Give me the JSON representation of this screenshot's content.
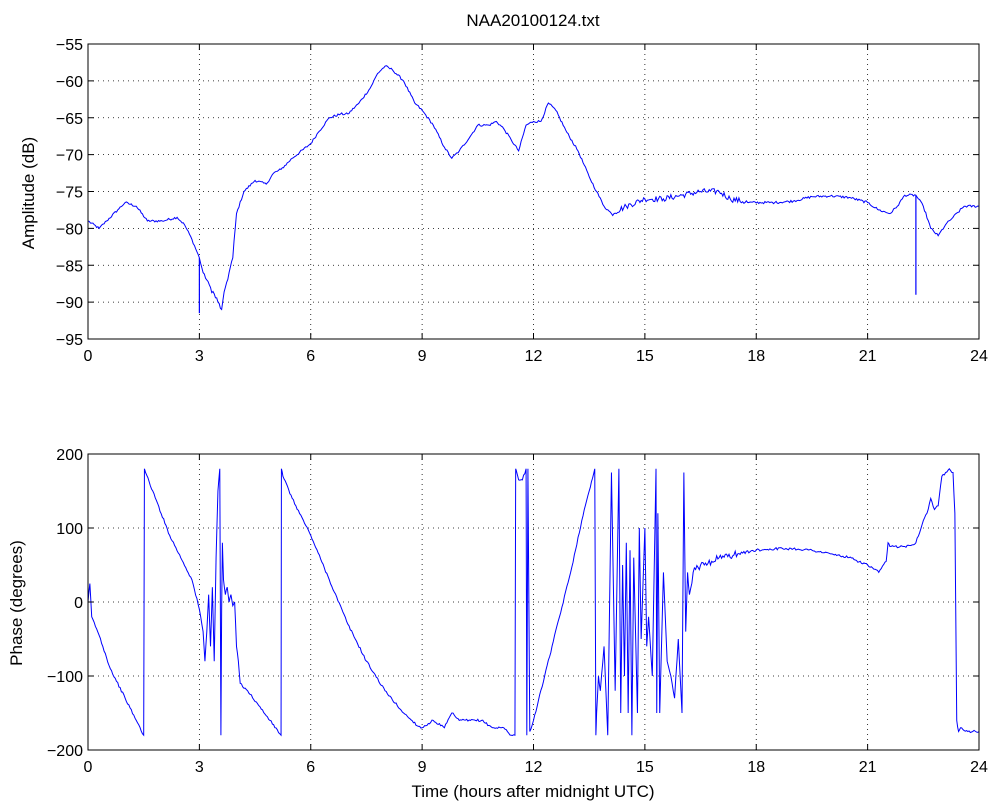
{
  "figure": {
    "title": "NAA20100124.txt",
    "line_color": "#0000ff"
  },
  "chart_data": [
    {
      "type": "line",
      "title": "NAA20100124.txt",
      "xlabel": "",
      "ylabel": "Amplitude (dB)",
      "xlim": [
        0,
        24
      ],
      "ylim": [
        -95,
        -55
      ],
      "xticks": [
        0,
        3,
        6,
        9,
        12,
        15,
        18,
        21,
        24
      ],
      "yticks": [
        -55,
        -60,
        -65,
        -70,
        -75,
        -80,
        -85,
        -90,
        -95
      ],
      "grid": true,
      "series": [
        {
          "x": [
            0,
            0.3,
            0.5,
            0.8,
            1.0,
            1.3,
            1.6,
            2.0,
            2.4,
            2.6,
            2.8,
            3.0,
            3.1,
            3.3,
            3.5,
            3.6,
            3.7,
            3.8,
            3.9,
            4.0,
            4.2,
            4.5,
            4.8,
            5.0,
            5.2,
            5.5,
            6.0,
            6.2,
            6.5,
            6.8,
            7.0,
            7.3,
            7.6,
            7.8,
            8.0,
            8.2,
            8.5,
            8.8,
            9.0,
            9.3,
            9.6,
            9.8,
            10.0,
            10.3,
            10.5,
            10.8,
            11.0,
            11.2,
            11.4,
            11.6,
            11.8,
            12.0,
            12.2,
            12.4,
            12.6,
            12.9,
            13.2,
            13.5,
            13.7,
            13.9,
            14.1,
            14.5,
            15.0,
            15.5,
            16.0,
            16.5,
            17.0,
            17.3,
            17.8,
            18.5,
            19.0,
            19.5,
            20.0,
            20.5,
            21.0,
            21.3,
            21.6,
            21.8,
            22.0,
            22.3,
            22.5,
            22.7,
            22.9,
            23.1,
            23.3,
            23.6,
            24.0
          ],
          "y": [
            -79,
            -80,
            -79,
            -77.5,
            -76.5,
            -77,
            -79,
            -79,
            -78.5,
            -79.5,
            -81.5,
            -84,
            -86,
            -88,
            -90,
            -91,
            -88,
            -86,
            -84,
            -78,
            -75,
            -73.5,
            -74,
            -72.5,
            -72,
            -70.5,
            -68.5,
            -67,
            -65,
            -64.5,
            -64.5,
            -63,
            -61,
            -59,
            -58,
            -58.5,
            -60,
            -63,
            -64,
            -66,
            -69,
            -70.5,
            -69.5,
            -67.5,
            -66,
            -66,
            -65.5,
            -66.5,
            -68,
            -69.5,
            -66,
            -65.5,
            -65.5,
            -63,
            -64,
            -67,
            -69.5,
            -73,
            -75,
            -77,
            -78,
            -77,
            -76,
            -76,
            -75.5,
            -75,
            -75,
            -76,
            -76.5,
            -76.5,
            -76.3,
            -75.7,
            -75.6,
            -75.8,
            -76.5,
            -77.5,
            -78,
            -77,
            -75.5,
            -75.5,
            -77,
            -80,
            -81,
            -79.5,
            -78.5,
            -77,
            -77
          ]
        }
      ],
      "spikes": [
        {
          "x": 3.0,
          "to": -91.5
        },
        {
          "x": 22.3,
          "to": -89
        }
      ]
    },
    {
      "type": "line",
      "title": "",
      "xlabel": "Time (hours after midnight UTC)",
      "ylabel": "Phase (degrees)",
      "xlim": [
        0,
        24
      ],
      "ylim": [
        -200,
        200
      ],
      "xticks": [
        0,
        3,
        6,
        9,
        12,
        15,
        18,
        21,
        24
      ],
      "yticks": [
        200,
        100,
        0,
        -100,
        -200
      ],
      "grid": true,
      "series": [
        {
          "x": [
            0,
            0.05,
            0.1,
            0.3,
            0.6,
            1.0,
            1.3,
            1.5,
            1.52,
            1.55,
            2.2,
            2.8,
            3.0,
            3.1,
            3.15,
            3.2,
            3.25,
            3.3,
            3.35,
            3.4,
            3.45,
            3.5,
            3.55,
            3.58,
            3.6,
            3.62,
            3.65,
            3.7,
            3.75,
            3.8,
            3.85,
            3.9,
            3.95,
            4.0,
            4.05,
            4.1,
            4.3,
            4.6,
            4.9,
            5.2,
            5.21,
            5.25,
            5.5,
            6.0,
            6.5,
            7.0,
            7.5,
            8.0,
            8.5,
            8.9,
            9.0,
            9.3,
            9.6,
            9.8,
            10.0,
            10.3,
            10.6,
            10.9,
            11.2,
            11.4,
            11.5,
            11.52,
            11.55,
            11.6,
            11.7,
            11.8,
            11.82,
            11.85,
            11.9,
            12.0,
            12.3,
            12.7,
            13.0,
            13.3,
            13.5,
            13.65,
            13.68,
            13.7,
            13.75,
            13.8,
            13.9,
            14.0,
            14.1,
            14.2,
            14.3,
            14.35,
            14.4,
            14.45,
            14.5,
            14.55,
            14.6,
            14.65,
            14.7,
            14.8,
            14.85,
            14.9,
            15.0,
            15.05,
            15.1,
            15.2,
            15.3,
            15.32,
            15.35,
            15.4,
            15.5,
            15.6,
            15.7,
            15.8,
            15.9,
            16.0,
            16.05,
            16.1,
            16.15,
            16.2,
            16.3,
            16.5,
            16.8,
            17.0,
            17.5,
            18.0,
            18.5,
            19.0,
            19.5,
            20.0,
            20.5,
            21.0,
            21.3,
            21.5,
            21.55,
            21.6,
            22.0,
            22.3,
            22.5,
            22.6,
            22.7,
            22.8,
            22.9,
            23.0,
            23.1,
            23.2,
            23.3,
            23.35,
            23.4,
            23.45,
            23.5,
            23.7,
            24.0
          ],
          "y": [
            0,
            25,
            -20,
            -45,
            -90,
            -130,
            -160,
            -180,
            180,
            175,
            90,
            30,
            -10,
            -40,
            -80,
            -40,
            10,
            -60,
            20,
            -80,
            60,
            150,
            180,
            -180,
            -10,
            80,
            30,
            10,
            20,
            0,
            10,
            -5,
            0,
            -60,
            -80,
            -110,
            -120,
            -140,
            -160,
            -180,
            180,
            170,
            140,
            90,
            30,
            -30,
            -80,
            -120,
            -150,
            -168,
            -170,
            -160,
            -170,
            -150,
            -160,
            -160,
            -160,
            -170,
            -170,
            -180,
            -180,
            180,
            175,
            165,
            165,
            180,
            -180,
            180,
            -175,
            -160,
            -100,
            -20,
            40,
            110,
            150,
            180,
            -180,
            -150,
            -100,
            -120,
            -60,
            -180,
            175,
            -120,
            180,
            -150,
            50,
            -100,
            80,
            -150,
            70,
            -180,
            60,
            -150,
            100,
            -50,
            100,
            -60,
            -20,
            -100,
            180,
            -150,
            120,
            -150,
            40,
            -80,
            -100,
            -130,
            -50,
            -150,
            175,
            -40,
            40,
            10,
            40,
            50,
            55,
            60,
            65,
            70,
            72,
            72,
            70,
            65,
            60,
            50,
            40,
            55,
            80,
            75,
            75,
            80,
            110,
            120,
            140,
            125,
            130,
            170,
            175,
            180,
            175,
            120,
            -160,
            -175,
            -170,
            -175,
            -175
          ]
        }
      ]
    }
  ]
}
